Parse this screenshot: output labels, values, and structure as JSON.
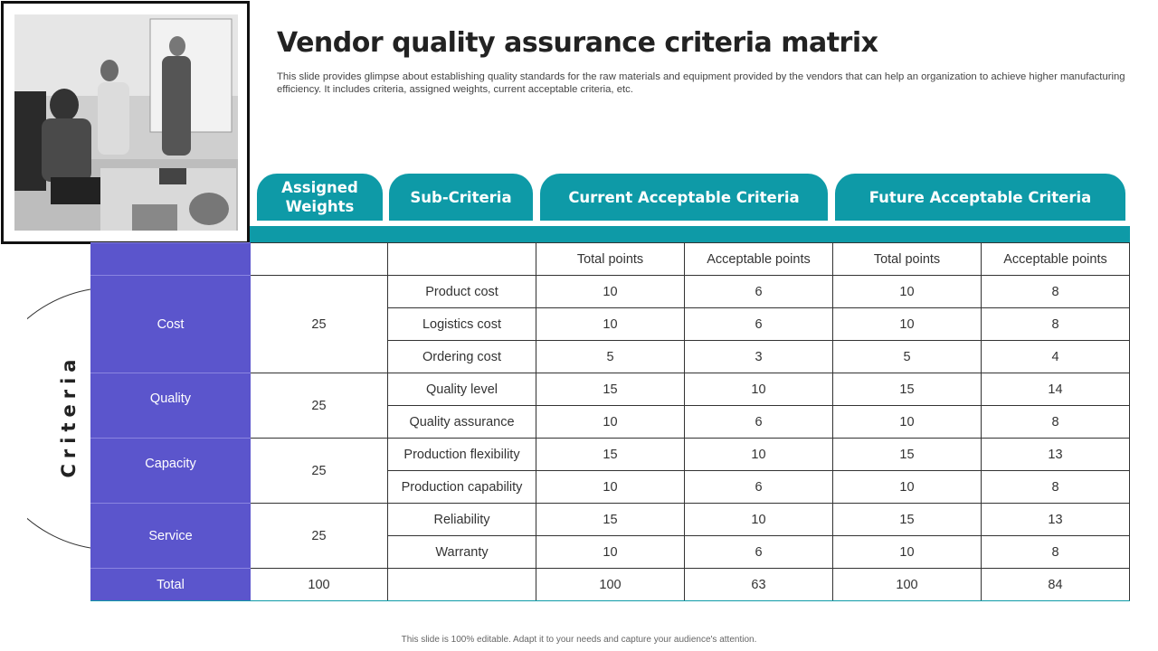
{
  "title": "Vendor quality assurance criteria matrix",
  "subtitle": "This slide provides glimpse about establishing quality standards for the raw materials and equipment provided by the vendors that can help an organization to achieve higher manufacturing efficiency. It includes criteria, assigned weights, current acceptable criteria, etc.",
  "headers": {
    "assigned_weights": "Assigned Weights",
    "sub_criteria": "Sub-Criteria",
    "current": "Current Acceptable Criteria",
    "future": "Future Acceptable Criteria"
  },
  "side_label": "Criteria",
  "table": {
    "col_headers": [
      "Total points",
      "Acceptable points",
      "Total points",
      "Acceptable points"
    ],
    "groups": [
      {
        "criteria": "Cost",
        "weight": "25",
        "rows": [
          {
            "sub": "Product cost",
            "values": [
              "10",
              "6",
              "10",
              "8"
            ]
          },
          {
            "sub": "Logistics cost",
            "values": [
              "10",
              "6",
              "10",
              "8"
            ]
          },
          {
            "sub": "Ordering cost",
            "values": [
              "5",
              "3",
              "5",
              "4"
            ]
          }
        ]
      },
      {
        "criteria": "Quality",
        "weight": "25",
        "rows": [
          {
            "sub": "Quality level",
            "values": [
              "15",
              "10",
              "15",
              "14"
            ]
          },
          {
            "sub": "Quality assurance",
            "values": [
              "10",
              "6",
              "10",
              "8"
            ]
          }
        ]
      },
      {
        "criteria": "Capacity",
        "weight": "25",
        "rows": [
          {
            "sub": "Production flexibility",
            "values": [
              "15",
              "10",
              "15",
              "13"
            ]
          },
          {
            "sub": "Production capability",
            "values": [
              "10",
              "6",
              "10",
              "8"
            ]
          }
        ]
      },
      {
        "criteria": "Service",
        "weight": "25",
        "rows": [
          {
            "sub": "Reliability",
            "values": [
              "15",
              "10",
              "15",
              "13"
            ]
          },
          {
            "sub": "Warranty",
            "values": [
              "10",
              "6",
              "10",
              "8"
            ]
          }
        ]
      }
    ],
    "total": {
      "label": "Total",
      "weight": "100",
      "values": [
        "100",
        "63",
        "100",
        "84"
      ]
    }
  },
  "footer": "This slide is 100% editable. Adapt it to your needs and capture your audience's attention.",
  "colors": {
    "teal": "#0e9aa7",
    "purple": "#5b55cc"
  }
}
